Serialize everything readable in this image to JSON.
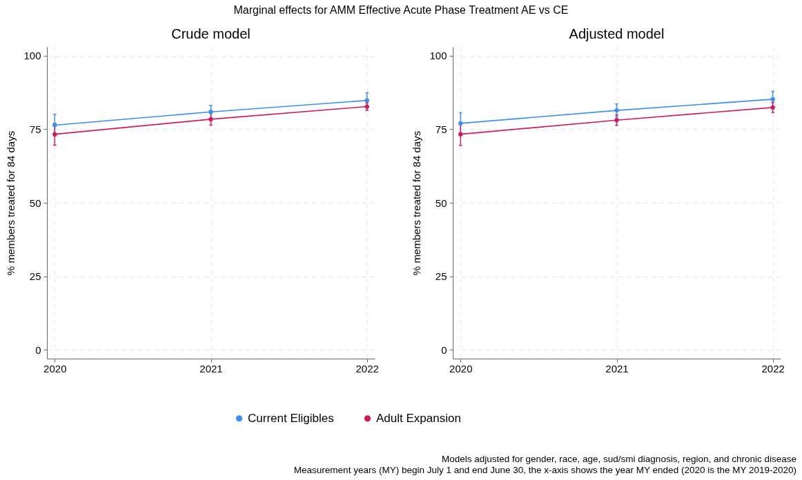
{
  "chart_data": [
    {
      "type": "line",
      "title": "Crude model",
      "ylabel": "% members treated for 84 days",
      "x": [
        2020,
        2021,
        2022
      ],
      "xlim": [
        2019.95,
        2022.05
      ],
      "xticks": [
        2020,
        2021,
        2022
      ],
      "ylim": [
        -3,
        103
      ],
      "yticks": [
        0,
        25,
        50,
        75,
        100
      ],
      "grid": true,
      "marker": "circle",
      "legend": "bottom",
      "annotations": [
        "Marginal effects for AMM Effective Acute Phase Treatment AE vs CE"
      ],
      "series": [
        {
          "name": "Current Eligibles",
          "color": "#3a8ef6",
          "values": [
            76.4,
            80.9,
            84.8
          ],
          "errors": [
            3.7,
            2.2,
            2.6
          ]
        },
        {
          "name": "Adult Expansion",
          "color": "#d2195b",
          "values": [
            73.3,
            78.4,
            82.7
          ],
          "errors": [
            3.7,
            2.0,
            1.3
          ]
        }
      ]
    },
    {
      "type": "line",
      "title": "Adjusted model",
      "ylabel": "% members treated for 84 days",
      "x": [
        2020,
        2021,
        2022
      ],
      "xlim": [
        2019.95,
        2022.05
      ],
      "xticks": [
        2020,
        2021,
        2022
      ],
      "ylim": [
        -3,
        103
      ],
      "yticks": [
        0,
        25,
        50,
        75,
        100
      ],
      "grid": true,
      "marker": "circle",
      "annotations": [
        "Models adjusted for gender, race, age, sud/smi diagnosis, region, and chronic disease",
        "Measurement years (MY) begin July 1 and end June 30, the x-axis shows the year MY ended (2020 is the MY 2019-2020)"
      ],
      "series": [
        {
          "color": "#3a8ef6",
          "values": [
            77.0,
            81.4,
            85.2
          ],
          "errors": [
            3.6,
            2.2,
            2.7
          ]
        },
        {
          "color": "#d2195b",
          "values": [
            73.3,
            78.1,
            82.4
          ],
          "errors": [
            3.8,
            1.8,
            1.7
          ]
        }
      ]
    }
  ]
}
